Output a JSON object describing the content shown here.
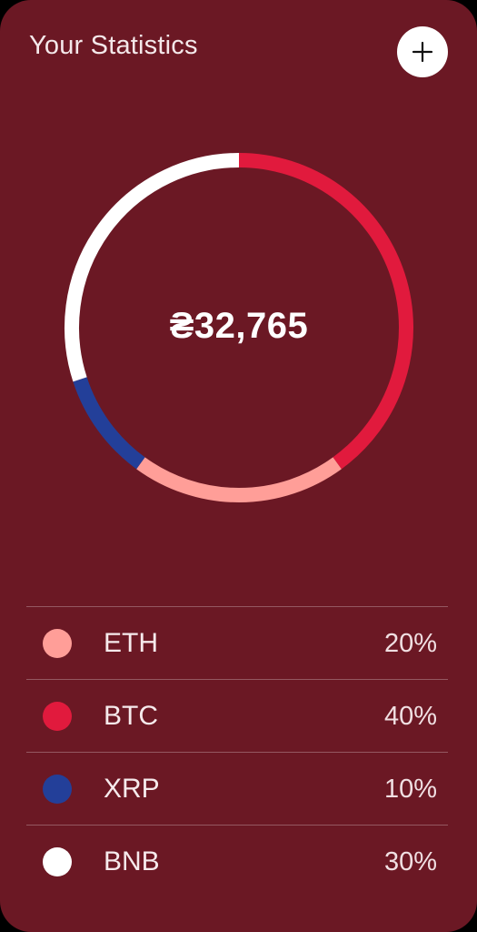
{
  "header": {
    "title": "Your Statistics",
    "add_icon": "plus-icon"
  },
  "summary": {
    "total": "₴32,765"
  },
  "colors": {
    "background": "#6b1824",
    "eth": "#ff9e98",
    "btc": "#e11a3d",
    "xrp": "#233f99",
    "bnb": "#ffffff"
  },
  "chart_data": {
    "type": "pie",
    "title": "",
    "categories": [
      "ETH",
      "BTC",
      "XRP",
      "BNB"
    ],
    "values": [
      20,
      40,
      10,
      30
    ],
    "colors": [
      "#ff9e98",
      "#e11a3d",
      "#233f99",
      "#ffffff"
    ]
  },
  "legend": {
    "items": [
      {
        "name": "ETH",
        "percent": "20%",
        "color": "#ff9e98"
      },
      {
        "name": "BTC",
        "percent": "40%",
        "color": "#e11a3d"
      },
      {
        "name": "XRP",
        "percent": "10%",
        "color": "#233f99"
      },
      {
        "name": "BNB",
        "percent": "30%",
        "color": "#ffffff"
      }
    ]
  }
}
